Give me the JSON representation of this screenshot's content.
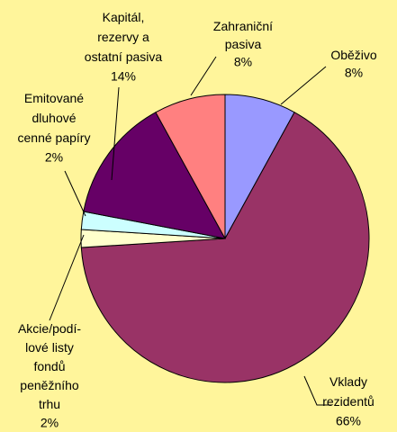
{
  "chart_data": {
    "type": "pie",
    "categories": [
      "Oběživo",
      "Vklady\nrezidentů",
      "Akcie/podí-\nlové listy\nfondů\npeněžního\ntrhu",
      "Emitované\ndluhové\ncenné papíry",
      "Kapitál,\nrezervy a\nostatní pasiva",
      "Zahraniční\npasiva"
    ],
    "values": [
      8,
      66,
      2,
      2,
      14,
      8
    ],
    "value_labels": [
      "8%",
      "66%",
      "2%",
      "2%",
      "14%",
      "8%"
    ],
    "colors": [
      "#9999ff",
      "#993366",
      "#ffffcc",
      "#ccffff",
      "#660066",
      "#ff8080"
    ]
  }
}
